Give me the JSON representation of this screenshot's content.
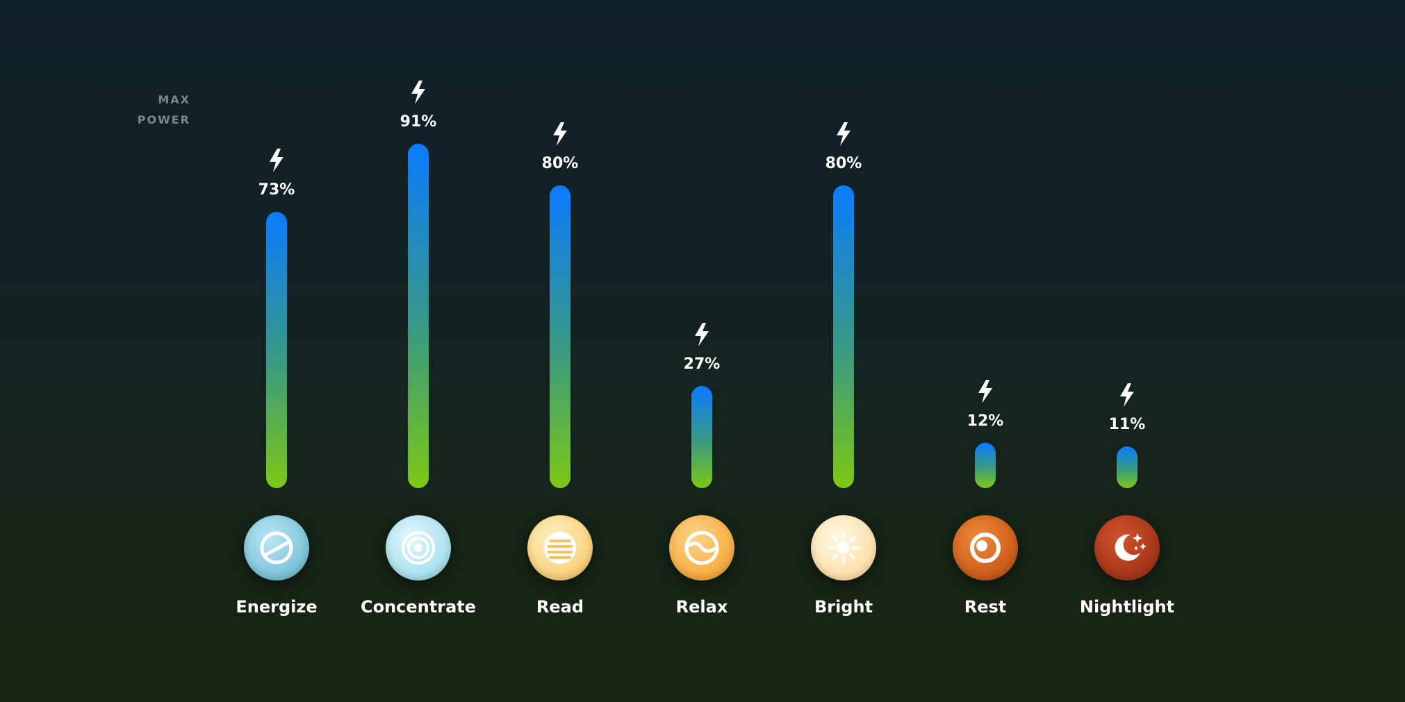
{
  "chart_data": {
    "type": "bar",
    "max_label_line1": "MAX",
    "max_label_line2": "POWER",
    "categories": [
      "Energize",
      "Concentrate",
      "Read",
      "Relax",
      "Bright",
      "Rest",
      "Nightlight"
    ],
    "values": [
      73,
      91,
      80,
      27,
      80,
      12,
      11
    ],
    "value_labels": [
      "73%",
      "91%",
      "80%",
      "27%",
      "80%",
      "12%",
      "11%"
    ],
    "ylim": [
      0,
      100
    ],
    "grid": true,
    "bar_gradient": {
      "top": "#0a7bff",
      "bottom": "#7dc814"
    },
    "icons": [
      {
        "name": "energize-icon",
        "colors": [
          "#b8e6f2",
          "#62b3cf"
        ]
      },
      {
        "name": "concentrate-icon",
        "colors": [
          "#e0f7fc",
          "#8fd6e8"
        ]
      },
      {
        "name": "read-icon",
        "colors": [
          "#fff1c4",
          "#f7c25a"
        ]
      },
      {
        "name": "relax-icon",
        "colors": [
          "#ffd48a",
          "#f39a1e"
        ]
      },
      {
        "name": "bright-icon",
        "colors": [
          "#fff8e3",
          "#fbd790"
        ]
      },
      {
        "name": "rest-icon",
        "colors": [
          "#ef8a3a",
          "#b9460a"
        ]
      },
      {
        "name": "nightlight-icon",
        "colors": [
          "#d2522c",
          "#8f2812"
        ]
      }
    ]
  }
}
